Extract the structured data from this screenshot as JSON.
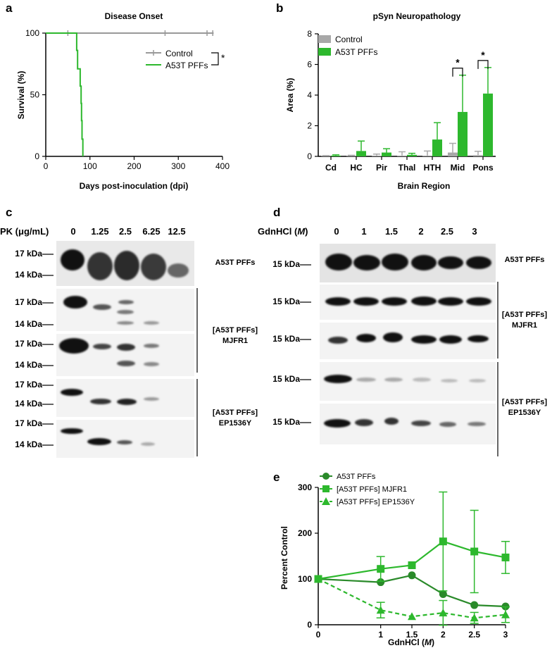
{
  "panels": {
    "a": {
      "letter": "a",
      "chart_data": {
        "type": "line",
        "title": "Disease Onset",
        "xlabel": "Days post-inoculation (dpi)",
        "ylabel": "Survival (%)",
        "xlim": [
          0,
          400
        ],
        "ylim": [
          0,
          100
        ],
        "xticks": [
          "0",
          "100",
          "200",
          "300",
          "400"
        ],
        "yticks": [
          "0",
          "50",
          "100"
        ],
        "legend_position": "center-right",
        "significance": "*",
        "series": [
          {
            "name": "Control",
            "color": "#999999",
            "steps": [
              [
                0,
                100
              ],
              [
                380,
                100
              ]
            ],
            "censor_x": [
              50,
              270,
              365,
              378
            ]
          },
          {
            "name": "A53T PFFs",
            "color": "#2db82d",
            "steps": [
              [
                0,
                100
              ],
              [
                70,
                100
              ],
              [
                70,
                86
              ],
              [
                72,
                86
              ],
              [
                72,
                71
              ],
              [
                78,
                71
              ],
              [
                78,
                57
              ],
              [
                80,
                57
              ],
              [
                80,
                43
              ],
              [
                81,
                43
              ],
              [
                81,
                29
              ],
              [
                82,
                29
              ],
              [
                82,
                14
              ],
              [
                84,
                14
              ],
              [
                84,
                0
              ]
            ],
            "censor_x": []
          }
        ]
      }
    },
    "b": {
      "letter": "b",
      "chart_data": {
        "type": "bar",
        "title": "pSyn Neuropathology",
        "xlabel": "Brain Region",
        "ylabel": "Area (%)",
        "ylim": [
          0,
          8
        ],
        "yticks": [
          "0",
          "2",
          "4",
          "6",
          "8"
        ],
        "categories": [
          "Cd",
          "HC",
          "Pir",
          "Thal",
          "HTH",
          "Mid",
          "Pons"
        ],
        "legend_position": "top-left",
        "series": [
          {
            "name": "Control",
            "color": "#a8a8a8",
            "values": [
              0.02,
              0.02,
              0.05,
              0.05,
              0.05,
              0.25,
              0.08
            ],
            "errors": [
              0.03,
              0.05,
              0.1,
              0.25,
              0.3,
              0.6,
              0.25
            ]
          },
          {
            "name": "A53T PFFs",
            "color": "#2db82d",
            "values": [
              0.05,
              0.35,
              0.25,
              0.1,
              1.1,
              2.9,
              4.1
            ],
            "errors": [
              0.05,
              0.65,
              0.25,
              0.1,
              1.1,
              2.4,
              1.7
            ]
          }
        ],
        "significance": [
          {
            "category": "Mid",
            "label": "*"
          },
          {
            "category": "Pons",
            "label": "*"
          }
        ]
      }
    },
    "c": {
      "letter": "c",
      "header_label": "PK (μg/mL)",
      "lanes": [
        "0",
        "1.25",
        "2.5",
        "6.25",
        "12.5"
      ],
      "blot_labels": {
        "top": "A53T PFFs",
        "mid_1": "[A53T PFFs]",
        "mid_2": "MJFR1",
        "bot_1": "[A53T PFFs]",
        "bot_2": "EP1536Y"
      },
      "markers": [
        "17 kDa",
        "14 kDa",
        "17 kDa",
        "14 kDa",
        "17 kDa",
        "14 kDa",
        "17 kDa",
        "14 kDa",
        "17 kDa",
        "14 kDa"
      ]
    },
    "d": {
      "letter": "d",
      "header_label": "GdnHCl (M)",
      "header_label_prefix": "GdnHCl (",
      "header_label_unit": "M",
      "header_label_suffix": ")",
      "lanes": [
        "0",
        "1",
        "1.5",
        "2",
        "2.5",
        "3"
      ],
      "blot_labels": {
        "top": "A53T PFFs",
        "mid_1": "[A53T PFFs]",
        "mid_2": "MJFR1",
        "bot_1": "[A53T PFFs]",
        "bot_2": "EP1536Y"
      },
      "markers": [
        "15 kDa",
        "15 kDa",
        "15 kDa",
        "15 kDa",
        "15 kDa"
      ]
    },
    "e": {
      "letter": "e",
      "chart_data": {
        "type": "line",
        "xlabel": "GdnHCl (M)",
        "xlabel_prefix": "GdnHCl (",
        "xlabel_unit": "M",
        "xlabel_suffix": ")",
        "ylabel": "Percent Control",
        "x": [
          0,
          1,
          1.5,
          2,
          2.5,
          3
        ],
        "xticks": [
          "0",
          "1",
          "1.5",
          "2",
          "2.5",
          "3"
        ],
        "yticks": [
          "0",
          "100",
          "200",
          "300"
        ],
        "ylim": [
          0,
          300
        ],
        "legend_position": "top-left",
        "series": [
          {
            "name": "A53T PFFs",
            "color": "#2a8a2a",
            "marker": "circle",
            "dash": false,
            "values": [
              100,
              93,
              108,
              67,
              43,
              40
            ],
            "errors": [
              0,
              0,
              0,
              0,
              0,
              0
            ]
          },
          {
            "name": "[A53T PFFs] MJFR1",
            "color": "#2db82d",
            "marker": "square",
            "dash": false,
            "values": [
              100,
              122,
              130,
              182,
              160,
              147
            ],
            "errors": [
              0,
              27,
              0,
              108,
              90,
              35
            ]
          },
          {
            "name": "[A53T PFFs] EP1536Y",
            "color": "#2db82d",
            "marker": "triangle",
            "dash": true,
            "values": [
              100,
              32,
              18,
              26,
              15,
              22
            ],
            "errors": [
              0,
              17,
              0,
              27,
              12,
              17
            ]
          }
        ]
      }
    }
  }
}
